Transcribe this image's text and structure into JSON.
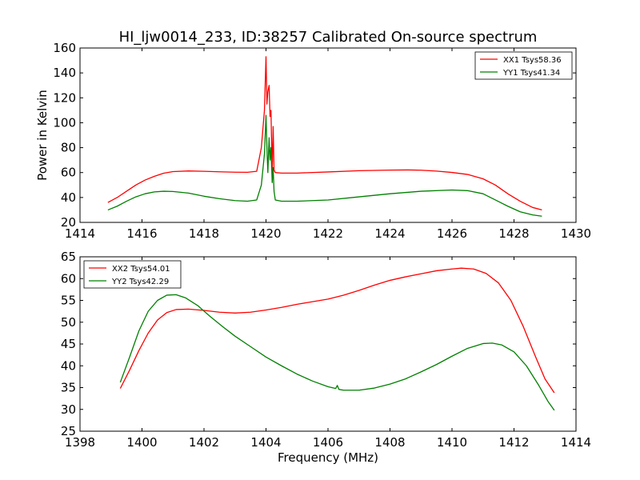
{
  "colors": {
    "xx": "#ff0000",
    "yy": "#008000"
  },
  "chart_data": [
    {
      "type": "line",
      "title": "HI_ljw0014_233, ID:38257 Calibrated On-source spectrum",
      "xlabel": "",
      "ylabel": "Power in Kelvin",
      "xlim": [
        1414,
        1430
      ],
      "ylim": [
        20,
        160
      ],
      "xticks": [
        1414,
        1416,
        1418,
        1420,
        1422,
        1424,
        1426,
        1428,
        1430
      ],
      "yticks": [
        20,
        40,
        60,
        80,
        100,
        120,
        140,
        160
      ],
      "legend_position": "top-right",
      "series": [
        {
          "name": "XX1 Tsys58.36",
          "color": "#ff0000",
          "x": [
            1414.9,
            1415.2,
            1415.5,
            1415.8,
            1416.1,
            1416.4,
            1416.7,
            1417.0,
            1417.5,
            1418.0,
            1418.5,
            1419.0,
            1419.4,
            1419.7,
            1419.85,
            1419.95,
            1420.0,
            1420.03,
            1420.06,
            1420.1,
            1420.13,
            1420.16,
            1420.2,
            1420.23,
            1420.26,
            1420.3,
            1420.5,
            1421.0,
            1422.0,
            1423.0,
            1424.0,
            1424.6,
            1425.0,
            1425.5,
            1426.0,
            1426.5,
            1427.0,
            1427.4,
            1427.8,
            1428.2,
            1428.6,
            1428.9
          ],
          "values": [
            36,
            40,
            45,
            50,
            54,
            57,
            59.5,
            60.8,
            61.3,
            61,
            60.6,
            60.3,
            60.2,
            61,
            80,
            110,
            153,
            115,
            125,
            130,
            105,
            110,
            60,
            97,
            62,
            60,
            59.6,
            59.6,
            60.5,
            61.5,
            62,
            62.1,
            61.9,
            61.2,
            60.1,
            58.5,
            55,
            50,
            43,
            37,
            32,
            30
          ]
        },
        {
          "name": "YY1 Tsys41.34",
          "color": "#008000",
          "x": [
            1414.9,
            1415.2,
            1415.5,
            1415.8,
            1416.1,
            1416.4,
            1416.7,
            1417.0,
            1417.5,
            1418.0,
            1418.5,
            1419.0,
            1419.4,
            1419.7,
            1419.85,
            1419.95,
            1420.0,
            1420.03,
            1420.06,
            1420.1,
            1420.13,
            1420.16,
            1420.2,
            1420.23,
            1420.26,
            1420.3,
            1420.5,
            1421.0,
            1422.0,
            1423.0,
            1424.0,
            1425.0,
            1426.0,
            1426.5,
            1427.0,
            1427.4,
            1427.8,
            1428.2,
            1428.6,
            1428.9
          ],
          "values": [
            30,
            33,
            37,
            40.5,
            43,
            44.5,
            45,
            44.8,
            43.5,
            41,
            39,
            37.5,
            37,
            38,
            50,
            75,
            106,
            80,
            60,
            88,
            70,
            80,
            52,
            64,
            45,
            38,
            37,
            37,
            38,
            40.5,
            43,
            45,
            46,
            45.5,
            43,
            38,
            33,
            28.5,
            26,
            25
          ]
        }
      ]
    },
    {
      "type": "line",
      "title": "",
      "xlabel": "Frequency (MHz)",
      "ylabel": "",
      "xlim": [
        1398,
        1414
      ],
      "ylim": [
        25,
        65
      ],
      "xticks": [
        1398,
        1400,
        1402,
        1404,
        1406,
        1408,
        1410,
        1412,
        1414
      ],
      "yticks": [
        25,
        30,
        35,
        40,
        45,
        50,
        55,
        60,
        65
      ],
      "legend_position": "top-left",
      "series": [
        {
          "name": "XX2 Tsys54.01",
          "color": "#ff0000",
          "x": [
            1399.3,
            1399.6,
            1399.9,
            1400.2,
            1400.5,
            1400.8,
            1401.1,
            1401.5,
            1402.0,
            1402.5,
            1403.0,
            1403.5,
            1404.0,
            1404.5,
            1405.0,
            1405.5,
            1406.0,
            1406.5,
            1407.0,
            1407.5,
            1408.0,
            1408.5,
            1409.0,
            1409.5,
            1410.0,
            1410.3,
            1410.7,
            1411.1,
            1411.5,
            1411.9,
            1412.3,
            1412.7,
            1413.0,
            1413.3
          ],
          "values": [
            34.8,
            39,
            43.5,
            47.5,
            50.5,
            52.2,
            52.9,
            53,
            52.7,
            52.3,
            52.1,
            52.3,
            52.8,
            53.4,
            54.1,
            54.7,
            55.3,
            56.2,
            57.3,
            58.5,
            59.6,
            60.4,
            61.1,
            61.8,
            62.2,
            62.4,
            62.2,
            61.2,
            59,
            55,
            49,
            42,
            37,
            33.8
          ]
        },
        {
          "name": "YY2 Tsys42.29",
          "color": "#008000",
          "x": [
            1399.3,
            1399.6,
            1399.9,
            1400.2,
            1400.5,
            1400.8,
            1401.1,
            1401.4,
            1401.8,
            1402.2,
            1402.6,
            1403.0,
            1403.5,
            1404.0,
            1404.5,
            1405.0,
            1405.5,
            1406.0,
            1406.25,
            1406.3,
            1406.35,
            1406.5,
            1407.0,
            1407.5,
            1408.0,
            1408.5,
            1409.0,
            1409.5,
            1410.0,
            1410.5,
            1411.0,
            1411.3,
            1411.6,
            1412.0,
            1412.4,
            1412.8,
            1413.1,
            1413.3
          ],
          "values": [
            36.2,
            42,
            48,
            52.5,
            55,
            56.2,
            56.3,
            55.6,
            53.8,
            51.3,
            49,
            46.8,
            44.4,
            42,
            40,
            38.1,
            36.5,
            35.2,
            34.8,
            35.5,
            34.6,
            34.4,
            34.4,
            34.9,
            35.8,
            37,
            38.6,
            40.3,
            42.2,
            44,
            45.1,
            45.2,
            44.8,
            43.2,
            40,
            35.5,
            31.8,
            29.8
          ]
        }
      ]
    }
  ]
}
